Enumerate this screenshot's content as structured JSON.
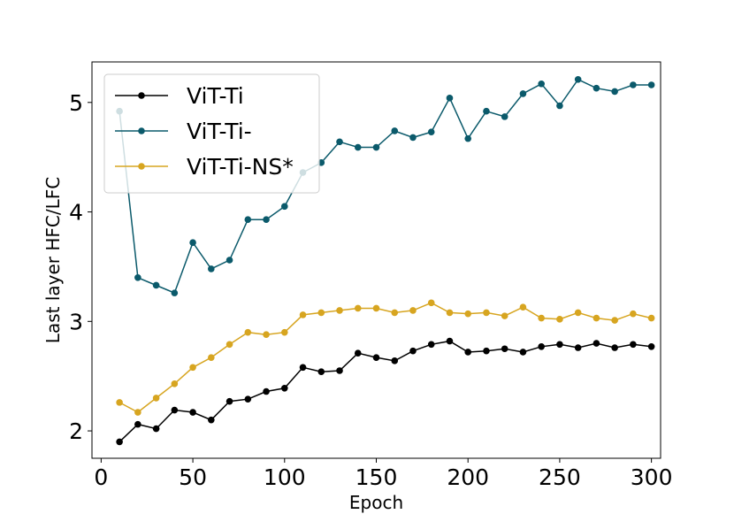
{
  "chart_data": {
    "type": "line",
    "title": "",
    "xlabel": "Epoch",
    "ylabel": "Last layer HFC/LFC",
    "xlim": [
      -5,
      305
    ],
    "ylim": [
      1.75,
      5.37
    ],
    "xticks": [
      0,
      50,
      100,
      150,
      200,
      250,
      300
    ],
    "yticks": [
      2,
      3,
      4,
      5
    ],
    "grid": false,
    "legend_position": "top-left",
    "x": [
      10,
      20,
      30,
      40,
      50,
      60,
      70,
      80,
      90,
      100,
      110,
      120,
      130,
      140,
      150,
      160,
      170,
      180,
      190,
      200,
      210,
      220,
      230,
      240,
      250,
      260,
      270,
      280,
      290,
      300
    ],
    "series": [
      {
        "name": "ViT-Ti",
        "color": "#000000",
        "values": [
          1.9,
          2.06,
          2.02,
          2.19,
          2.17,
          2.1,
          2.27,
          2.29,
          2.36,
          2.39,
          2.58,
          2.54,
          2.55,
          2.71,
          2.67,
          2.64,
          2.73,
          2.79,
          2.82,
          2.72,
          2.73,
          2.75,
          2.72,
          2.77,
          2.79,
          2.76,
          2.8,
          2.76,
          2.79,
          2.77
        ]
      },
      {
        "name": "ViT-Ti-",
        "color": "#0b5a6b",
        "values": [
          4.92,
          3.4,
          3.33,
          3.26,
          3.72,
          3.48,
          3.56,
          3.93,
          3.93,
          4.05,
          4.36,
          4.45,
          4.64,
          4.59,
          4.59,
          4.74,
          4.68,
          4.73,
          5.04,
          4.67,
          4.92,
          4.87,
          5.08,
          5.17,
          4.97,
          5.21,
          5.13,
          5.1,
          5.16,
          5.16
        ]
      },
      {
        "name": "ViT-Ti-NS*",
        "color": "#d7a520",
        "values": [
          2.26,
          2.17,
          2.3,
          2.43,
          2.58,
          2.67,
          2.79,
          2.9,
          2.88,
          2.9,
          3.06,
          3.08,
          3.1,
          3.12,
          3.12,
          3.08,
          3.1,
          3.17,
          3.08,
          3.07,
          3.08,
          3.05,
          3.13,
          3.03,
          3.02,
          3.08,
          3.03,
          3.01,
          3.07,
          3.03
        ]
      }
    ]
  }
}
